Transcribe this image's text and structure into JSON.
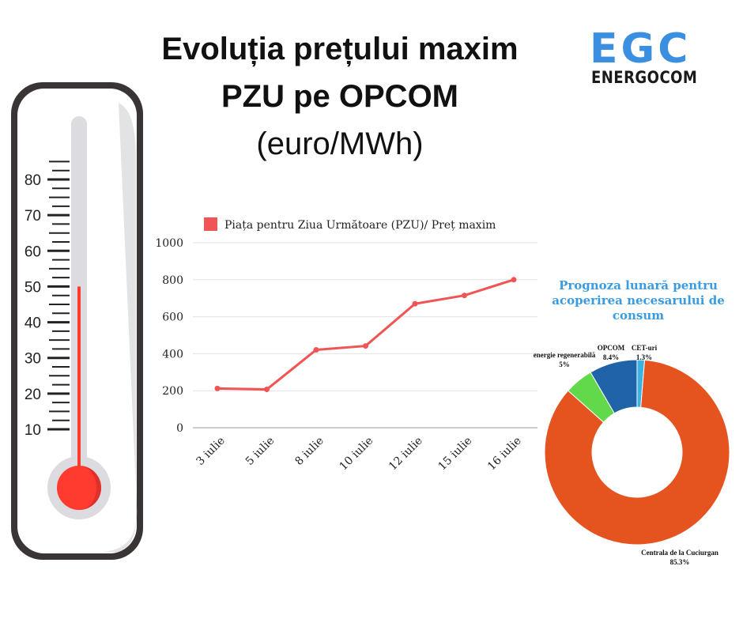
{
  "title": {
    "line1": "Evoluția prețului maxim",
    "line2": "PZU pe OPCOM",
    "line3": "(euro/MWh)"
  },
  "logo": {
    "main": "EGC",
    "sub": "ENERGOCOM"
  },
  "thermometer": {
    "ticks": [
      "80",
      "70",
      "60",
      "50",
      "40",
      "30",
      "20",
      "10"
    ],
    "level": 50,
    "max": 90
  },
  "colors": {
    "line": "#f05454",
    "bulb": "#ff3b2f",
    "frame": "#3a3535",
    "tube": "#dcdbe0",
    "centrala": "#e5531f",
    "energie": "#62d94a",
    "opcom": "#2063a8",
    "cet": "#3ab3e0"
  },
  "chart_data": [
    {
      "type": "line",
      "legend": "Piața pentru Ziua Următoare (PZU)/ Preț maxim",
      "categories": [
        "3 iulie",
        "5 iulie",
        "8 iulie",
        "10 iulie",
        "12 iulie",
        "15 iulie",
        "16 iulie"
      ],
      "values": [
        212,
        207,
        421,
        442,
        670,
        715,
        800
      ],
      "ylim": [
        0,
        1000
      ],
      "yticks": [
        "0",
        "200",
        "400",
        "600",
        "800",
        "1000"
      ],
      "grid": true,
      "legend_placement": "top"
    },
    {
      "type": "pie",
      "title": "Prognoza lunară pentru acoperirea necesarului de consum",
      "donut": true,
      "slices": [
        {
          "name": "CET-uri",
          "value": 1.3,
          "label": "1.3%"
        },
        {
          "name": "Centrala de la Cuciurgan",
          "value": 85.3,
          "label": "85.3%"
        },
        {
          "name": "energie regenerabilă",
          "value": 5,
          "label": "5%"
        },
        {
          "name": "OPCOM",
          "value": 8.4,
          "label": "8.4%"
        }
      ]
    }
  ]
}
